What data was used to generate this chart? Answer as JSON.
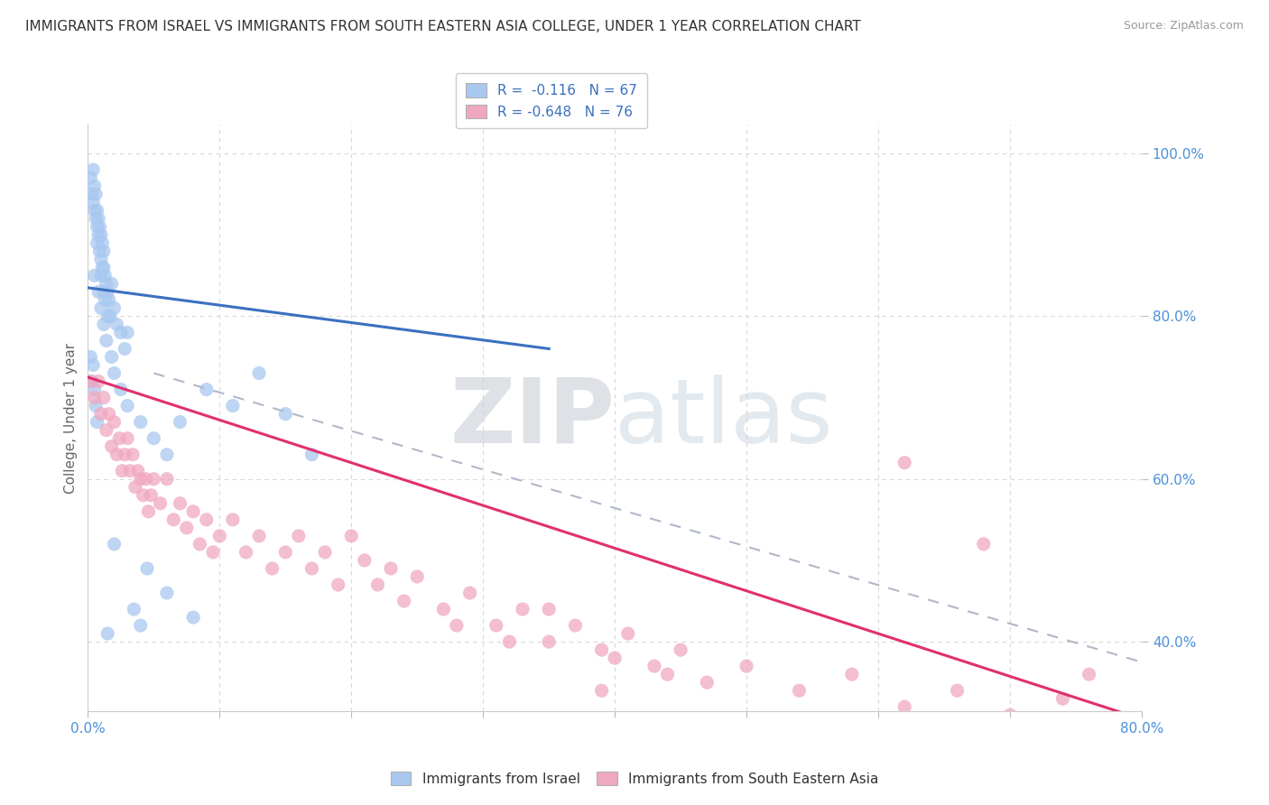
{
  "title": "IMMIGRANTS FROM ISRAEL VS IMMIGRANTS FROM SOUTH EASTERN ASIA COLLEGE, UNDER 1 YEAR CORRELATION CHART",
  "source": "Source: ZipAtlas.com",
  "ylabel": "College, Under 1 year",
  "xlim": [
    0.0,
    0.8
  ],
  "ylim": [
    0.315,
    1.035
  ],
  "yticks": [
    0.4,
    0.6,
    0.8,
    1.0
  ],
  "ytick_labels": [
    "40.0%",
    "60.0%",
    "80.0%",
    "100.0%"
  ],
  "xtick_labels": [
    "0.0%",
    "",
    "",
    "",
    "",
    "",
    "",
    "",
    "80.0%"
  ],
  "R_israel": -0.116,
  "N_israel": 67,
  "R_sea": -0.648,
  "N_sea": 76,
  "color_israel": "#a8c8f0",
  "color_sea": "#f0a8c0",
  "line_color_israel": "#3a70c0",
  "line_color_sea": "#e03070",
  "line_color_dashed": "#b0b8c8",
  "watermark": "ZIPatlas",
  "bg_color": "#ffffff",
  "grid_color": "#e8e8e8",
  "israel_line": [
    0.0,
    0.35,
    0.835,
    0.76
  ],
  "sea_line": [
    0.0,
    0.8,
    0.725,
    0.305
  ],
  "dashed_line": [
    0.05,
    0.8,
    0.73,
    0.375
  ],
  "scatter_israel_x": [
    0.002,
    0.003,
    0.004,
    0.004,
    0.005,
    0.005,
    0.006,
    0.006,
    0.007,
    0.007,
    0.007,
    0.008,
    0.008,
    0.009,
    0.009,
    0.01,
    0.01,
    0.01,
    0.011,
    0.011,
    0.012,
    0.012,
    0.012,
    0.013,
    0.013,
    0.014,
    0.015,
    0.015,
    0.016,
    0.017,
    0.018,
    0.02,
    0.022,
    0.025,
    0.028,
    0.03,
    0.005,
    0.008,
    0.01,
    0.012,
    0.014,
    0.018,
    0.02,
    0.025,
    0.03,
    0.04,
    0.05,
    0.06,
    0.07,
    0.09,
    0.11,
    0.13,
    0.15,
    0.17,
    0.002,
    0.003,
    0.004,
    0.005,
    0.006,
    0.007,
    0.04,
    0.08,
    0.06,
    0.045,
    0.02,
    0.035,
    0.015
  ],
  "scatter_israel_y": [
    0.97,
    0.95,
    0.98,
    0.94,
    0.96,
    0.93,
    0.95,
    0.92,
    0.93,
    0.91,
    0.89,
    0.92,
    0.9,
    0.91,
    0.88,
    0.9,
    0.87,
    0.85,
    0.89,
    0.86,
    0.88,
    0.86,
    0.83,
    0.85,
    0.82,
    0.84,
    0.83,
    0.8,
    0.82,
    0.8,
    0.84,
    0.81,
    0.79,
    0.78,
    0.76,
    0.78,
    0.85,
    0.83,
    0.81,
    0.79,
    0.77,
    0.75,
    0.73,
    0.71,
    0.69,
    0.67,
    0.65,
    0.63,
    0.67,
    0.71,
    0.69,
    0.73,
    0.68,
    0.63,
    0.75,
    0.72,
    0.74,
    0.71,
    0.69,
    0.67,
    0.42,
    0.43,
    0.46,
    0.49,
    0.52,
    0.44,
    0.41
  ],
  "scatter_sea_x": [
    0.002,
    0.005,
    0.008,
    0.01,
    0.012,
    0.014,
    0.016,
    0.018,
    0.02,
    0.022,
    0.024,
    0.026,
    0.028,
    0.03,
    0.032,
    0.034,
    0.036,
    0.038,
    0.04,
    0.042,
    0.044,
    0.046,
    0.048,
    0.05,
    0.055,
    0.06,
    0.065,
    0.07,
    0.075,
    0.08,
    0.085,
    0.09,
    0.095,
    0.1,
    0.11,
    0.12,
    0.13,
    0.14,
    0.15,
    0.16,
    0.17,
    0.18,
    0.19,
    0.2,
    0.21,
    0.22,
    0.23,
    0.24,
    0.25,
    0.27,
    0.29,
    0.31,
    0.33,
    0.35,
    0.37,
    0.39,
    0.41,
    0.43,
    0.45,
    0.47,
    0.5,
    0.54,
    0.58,
    0.62,
    0.66,
    0.7,
    0.74,
    0.76,
    0.68,
    0.62,
    0.35,
    0.28,
    0.32,
    0.4,
    0.44,
    0.39
  ],
  "scatter_sea_y": [
    0.72,
    0.7,
    0.72,
    0.68,
    0.7,
    0.66,
    0.68,
    0.64,
    0.67,
    0.63,
    0.65,
    0.61,
    0.63,
    0.65,
    0.61,
    0.63,
    0.59,
    0.61,
    0.6,
    0.58,
    0.6,
    0.56,
    0.58,
    0.6,
    0.57,
    0.6,
    0.55,
    0.57,
    0.54,
    0.56,
    0.52,
    0.55,
    0.51,
    0.53,
    0.55,
    0.51,
    0.53,
    0.49,
    0.51,
    0.53,
    0.49,
    0.51,
    0.47,
    0.53,
    0.5,
    0.47,
    0.49,
    0.45,
    0.48,
    0.44,
    0.46,
    0.42,
    0.44,
    0.4,
    0.42,
    0.39,
    0.41,
    0.37,
    0.39,
    0.35,
    0.37,
    0.34,
    0.36,
    0.32,
    0.34,
    0.31,
    0.33,
    0.36,
    0.52,
    0.62,
    0.44,
    0.42,
    0.4,
    0.38,
    0.36,
    0.34
  ]
}
